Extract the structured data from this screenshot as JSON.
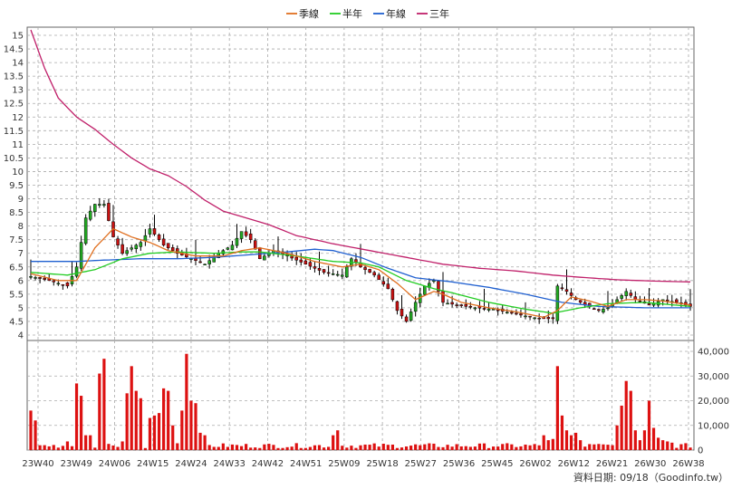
{
  "chart_data": {
    "type": "candlestick_volume",
    "legend": [
      {
        "label": "季線",
        "color": "#e07020"
      },
      {
        "label": "半年",
        "color": "#22cc22"
      },
      {
        "label": "年線",
        "color": "#2060d0"
      },
      {
        "label": "三年",
        "color": "#c0206a"
      }
    ],
    "x_ticks": [
      "23W40",
      "23W49",
      "24W06",
      "24W15",
      "24W24",
      "24W33",
      "24W42",
      "24W51",
      "25W09",
      "25W18",
      "25W27",
      "25W36",
      "25W45",
      "26W02",
      "26W12",
      "26W21",
      "26W30",
      "26W38"
    ],
    "price_axis": {
      "ticks": [
        "15",
        "14.5",
        "14",
        "13.5",
        "13",
        "12.5",
        "12",
        "11.5",
        "11",
        "10.5",
        "10",
        "9.5",
        "9",
        "8.5",
        "8",
        "7.5",
        "7",
        "6.5",
        "6",
        "5.5",
        "5",
        "4.5",
        "4"
      ],
      "range": [
        3.8,
        15.3
      ]
    },
    "volume_axis": {
      "ticks": [
        "40,000",
        "30,000",
        "20,000",
        "10,000",
        "0"
      ],
      "range": [
        0,
        40000
      ]
    },
    "price_keypoints": [
      [
        0,
        6.15
      ],
      [
        4,
        6.0
      ],
      [
        8,
        5.8
      ],
      [
        10,
        6.5
      ],
      [
        12,
        8.3
      ],
      [
        14,
        8.8
      ],
      [
        16,
        8.8
      ],
      [
        18,
        7.6
      ],
      [
        20,
        7.0
      ],
      [
        24,
        7.4
      ],
      [
        26,
        7.9
      ],
      [
        29,
        7.3
      ],
      [
        32,
        7.0
      ],
      [
        35,
        6.8
      ],
      [
        38,
        6.6
      ],
      [
        41,
        7.0
      ],
      [
        44,
        7.3
      ],
      [
        46,
        7.8
      ],
      [
        48,
        7.5
      ],
      [
        50,
        6.8
      ],
      [
        53,
        7.1
      ],
      [
        56,
        6.9
      ],
      [
        60,
        6.6
      ],
      [
        64,
        6.3
      ],
      [
        68,
        6.2
      ],
      [
        70,
        6.8
      ],
      [
        72,
        6.5
      ],
      [
        75,
        6.2
      ],
      [
        78,
        5.7
      ],
      [
        80,
        4.9
      ],
      [
        82,
        4.5
      ],
      [
        84,
        5.2
      ],
      [
        86,
        5.8
      ],
      [
        88,
        6.0
      ],
      [
        90,
        5.2
      ],
      [
        93,
        5.1
      ],
      [
        97,
        5.0
      ],
      [
        101,
        4.95
      ],
      [
        105,
        4.8
      ],
      [
        108,
        4.7
      ],
      [
        111,
        4.6
      ],
      [
        114,
        4.6
      ],
      [
        115,
        5.8
      ],
      [
        117,
        5.6
      ],
      [
        119,
        5.3
      ],
      [
        121,
        5.1
      ],
      [
        124,
        4.9
      ],
      [
        126,
        5.0
      ],
      [
        128,
        5.3
      ],
      [
        130,
        5.6
      ],
      [
        132,
        5.3
      ],
      [
        135,
        5.1
      ],
      [
        138,
        5.3
      ],
      [
        141,
        5.2
      ],
      [
        144,
        5.05
      ]
    ],
    "ma_quarter": [
      [
        0,
        6.25
      ],
      [
        6,
        6.0
      ],
      [
        10,
        6.0
      ],
      [
        14,
        7.2
      ],
      [
        18,
        7.9
      ],
      [
        22,
        7.6
      ],
      [
        26,
        7.4
      ],
      [
        30,
        7.1
      ],
      [
        36,
        6.9
      ],
      [
        42,
        6.9
      ],
      [
        46,
        7.1
      ],
      [
        50,
        7.2
      ],
      [
        56,
        7.0
      ],
      [
        62,
        6.7
      ],
      [
        68,
        6.5
      ],
      [
        72,
        6.6
      ],
      [
        76,
        6.4
      ],
      [
        80,
        5.9
      ],
      [
        84,
        5.3
      ],
      [
        88,
        5.6
      ],
      [
        90,
        5.5
      ],
      [
        94,
        5.2
      ],
      [
        100,
        5.0
      ],
      [
        106,
        4.85
      ],
      [
        112,
        4.65
      ],
      [
        115,
        4.9
      ],
      [
        118,
        5.4
      ],
      [
        122,
        5.25
      ],
      [
        126,
        5.05
      ],
      [
        130,
        5.3
      ],
      [
        134,
        5.3
      ],
      [
        138,
        5.25
      ],
      [
        144,
        5.1
      ]
    ],
    "ma_half": [
      [
        0,
        6.3
      ],
      [
        8,
        6.2
      ],
      [
        14,
        6.4
      ],
      [
        20,
        6.8
      ],
      [
        26,
        7.0
      ],
      [
        32,
        7.05
      ],
      [
        40,
        7.0
      ],
      [
        46,
        7.05
      ],
      [
        50,
        7.05
      ],
      [
        58,
        6.9
      ],
      [
        66,
        6.7
      ],
      [
        72,
        6.65
      ],
      [
        76,
        6.5
      ],
      [
        82,
        6.0
      ],
      [
        88,
        5.7
      ],
      [
        92,
        5.55
      ],
      [
        100,
        5.2
      ],
      [
        108,
        4.95
      ],
      [
        114,
        4.8
      ],
      [
        120,
        5.0
      ],
      [
        126,
        5.15
      ],
      [
        134,
        5.2
      ],
      [
        144,
        5.05
      ]
    ],
    "ma_year": [
      [
        0,
        6.7
      ],
      [
        10,
        6.7
      ],
      [
        16,
        6.75
      ],
      [
        24,
        6.8
      ],
      [
        32,
        6.8
      ],
      [
        40,
        6.85
      ],
      [
        48,
        6.95
      ],
      [
        56,
        7.05
      ],
      [
        62,
        7.15
      ],
      [
        66,
        7.1
      ],
      [
        72,
        6.85
      ],
      [
        78,
        6.45
      ],
      [
        84,
        6.1
      ],
      [
        92,
        5.95
      ],
      [
        100,
        5.75
      ],
      [
        108,
        5.5
      ],
      [
        116,
        5.2
      ],
      [
        124,
        5.05
      ],
      [
        134,
        5.0
      ],
      [
        144,
        5.0
      ]
    ],
    "ma_3year": [
      [
        0,
        15.2
      ],
      [
        3,
        13.8
      ],
      [
        6,
        12.7
      ],
      [
        10,
        12.0
      ],
      [
        14,
        11.55
      ],
      [
        18,
        11.0
      ],
      [
        22,
        10.5
      ],
      [
        26,
        10.1
      ],
      [
        30,
        9.85
      ],
      [
        34,
        9.45
      ],
      [
        38,
        8.95
      ],
      [
        42,
        8.55
      ],
      [
        46,
        8.35
      ],
      [
        52,
        8.05
      ],
      [
        58,
        7.65
      ],
      [
        66,
        7.35
      ],
      [
        74,
        7.1
      ],
      [
        82,
        6.85
      ],
      [
        90,
        6.6
      ],
      [
        98,
        6.45
      ],
      [
        106,
        6.35
      ],
      [
        114,
        6.2
      ],
      [
        120,
        6.12
      ],
      [
        128,
        6.03
      ],
      [
        136,
        5.98
      ],
      [
        144,
        5.95
      ]
    ],
    "volume_spikes": [
      [
        0,
        16000
      ],
      [
        1,
        12000
      ],
      [
        8,
        3500
      ],
      [
        10,
        27000
      ],
      [
        11,
        22000
      ],
      [
        12,
        6000
      ],
      [
        13,
        6000
      ],
      [
        15,
        31000
      ],
      [
        16,
        37000
      ],
      [
        17,
        2500
      ],
      [
        20,
        3500
      ],
      [
        21,
        23000
      ],
      [
        22,
        34000
      ],
      [
        23,
        24000
      ],
      [
        24,
        21000
      ],
      [
        26,
        13000
      ],
      [
        27,
        14000
      ],
      [
        28,
        15000
      ],
      [
        29,
        25000
      ],
      [
        30,
        24000
      ],
      [
        31,
        10000
      ],
      [
        33,
        16000
      ],
      [
        34,
        39000
      ],
      [
        35,
        20000
      ],
      [
        36,
        19000
      ],
      [
        37,
        7000
      ],
      [
        38,
        6000
      ],
      [
        66,
        6000
      ],
      [
        67,
        8000
      ],
      [
        112,
        6000
      ],
      [
        113,
        4000
      ],
      [
        114,
        4500
      ],
      [
        115,
        34000
      ],
      [
        116,
        14000
      ],
      [
        117,
        8000
      ],
      [
        118,
        6000
      ],
      [
        119,
        7000
      ],
      [
        120,
        4000
      ],
      [
        128,
        10000
      ],
      [
        129,
        18000
      ],
      [
        130,
        28000
      ],
      [
        131,
        24000
      ],
      [
        132,
        8000
      ],
      [
        133,
        4000
      ],
      [
        134,
        8000
      ],
      [
        135,
        20000
      ],
      [
        136,
        9000
      ],
      [
        137,
        5000
      ],
      [
        138,
        4000
      ],
      [
        139,
        3500
      ],
      [
        140,
        3000
      ]
    ],
    "source_label": "資料日期: 09/18（Goodinfo.tw）"
  }
}
